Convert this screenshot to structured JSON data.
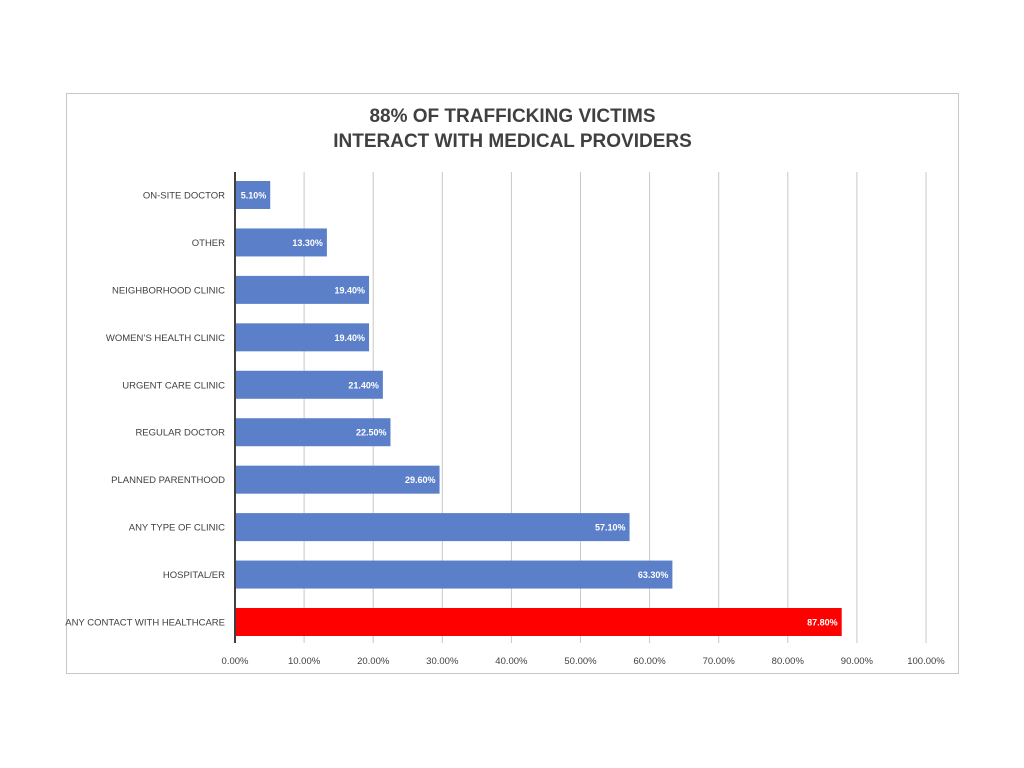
{
  "chart_data": {
    "type": "bar",
    "orientation": "horizontal",
    "title_lines": [
      "88% OF TRAFFICKING VICTIMS",
      "INTERACT WITH MEDICAL PROVIDERS"
    ],
    "categories": [
      "ON-SITE DOCTOR",
      "OTHER",
      "NEIGHBORHOOD CLINIC",
      "WOMEN’S HEALTH CLINIC",
      "URGENT CARE CLINIC",
      "REGULAR DOCTOR",
      "PLANNED PARENTHOOD",
      "ANY TYPE OF CLINIC",
      "HOSPITAL/ER",
      "ANY CONTACT WITH HEALTHCARE"
    ],
    "values": [
      5.1,
      13.3,
      19.4,
      19.4,
      21.4,
      22.5,
      29.6,
      57.1,
      63.3,
      87.8
    ],
    "data_labels": [
      "5.10%",
      "13.30%",
      "19.40%",
      "19.40%",
      "21.40%",
      "22.50%",
      "29.60%",
      "57.10%",
      "63.30%",
      "87.80%"
    ],
    "bar_colors": [
      "#5b7fc8",
      "#5b7fc8",
      "#5b7fc8",
      "#5b7fc8",
      "#5b7fc8",
      "#5b7fc8",
      "#5b7fc8",
      "#5b7fc8",
      "#5b7fc8",
      "#ff0000"
    ],
    "xlim": [
      0,
      100
    ],
    "x_ticks": [
      0,
      10,
      20,
      30,
      40,
      50,
      60,
      70,
      80,
      90,
      100
    ],
    "x_tick_labels": [
      "0.00%",
      "10.00%",
      "20.00%",
      "30.00%",
      "40.00%",
      "50.00%",
      "60.00%",
      "70.00%",
      "80.00%",
      "90.00%",
      "100.00%"
    ],
    "gridlines": true,
    "legend": "none",
    "colors": {
      "grid": "#c8c8c8",
      "axis": "#404040",
      "text": "#404040"
    }
  }
}
